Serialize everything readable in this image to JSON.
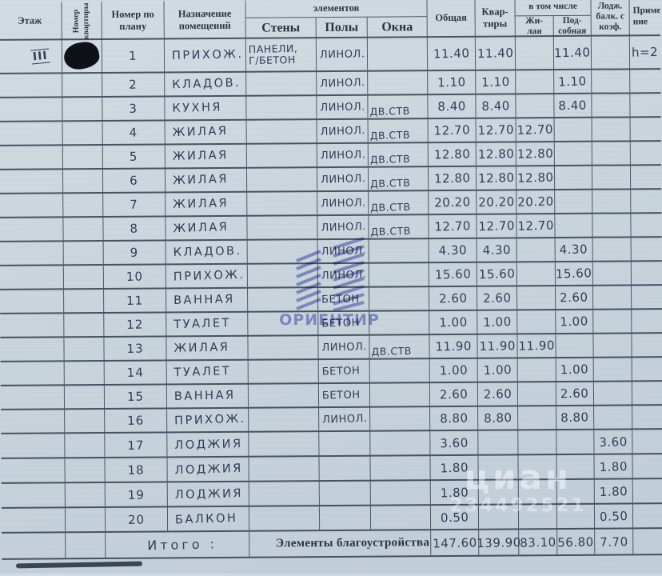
{
  "header": {
    "floor": "Этаж",
    "apartment_number": "Номер\nквартиры",
    "plan_number": "Номер по\nплану",
    "purpose": "Назначение\nпомещений",
    "materials_group": "элементов",
    "walls": "Стены",
    "floors": "Полы",
    "windows": "Окна",
    "area_total": "Общая",
    "area_apartment": "Квар-\nтиры",
    "including": "в том числе",
    "living": "Жи-\nлая",
    "auxiliary": "Под-\nсобная",
    "loggia": "Лодж.\nбалк. с\nкоэф.",
    "note": "Приме-\nние"
  },
  "floor_mark": "III",
  "rows": [
    {
      "n": "1",
      "name": "ПРИХОЖ.",
      "walls": "ПАНЕЛИ,\nГ/БЕТОН",
      "floor": "ЛИНОЛ.",
      "window": "",
      "total": "11.40",
      "apt": "11.40",
      "living": "",
      "aux": "11.40",
      "loggia": "",
      "note": "h=2"
    },
    {
      "n": "2",
      "name": "КЛАДОВ.",
      "floor": "ЛИНОЛ.",
      "total": "1.10",
      "apt": "1.10",
      "aux": "1.10"
    },
    {
      "n": "3",
      "name": "КУХНЯ",
      "floor": "ЛИНОЛ.",
      "window": "ДВ.СТВ",
      "total": "8.40",
      "apt": "8.40",
      "aux": "8.40"
    },
    {
      "n": "4",
      "name": "ЖИЛАЯ",
      "floor": "ЛИНОЛ.",
      "window": "ДВ.СТВ",
      "total": "12.70",
      "apt": "12.70",
      "living": "12.70"
    },
    {
      "n": "5",
      "name": "ЖИЛАЯ",
      "floor": "ЛИНОЛ.",
      "window": "ДВ.СТВ",
      "total": "12.80",
      "apt": "12.80",
      "living": "12.80"
    },
    {
      "n": "6",
      "name": "ЖИЛАЯ",
      "floor": "ЛИНОЛ.",
      "window": "ДВ.СТВ",
      "total": "12.80",
      "apt": "12.80",
      "living": "12.80"
    },
    {
      "n": "7",
      "name": "ЖИЛАЯ",
      "floor": "ЛИНОЛ.",
      "window": "ДВ.СТВ",
      "total": "20.20",
      "apt": "20.20",
      "living": "20.20"
    },
    {
      "n": "8",
      "name": "ЖИЛАЯ",
      "floor": "ЛИНОЛ.",
      "window": "ДВ.СТВ",
      "total": "12.70",
      "apt": "12.70",
      "living": "12.70"
    },
    {
      "n": "9",
      "name": "КЛАДОВ.",
      "floor": "ЛИНОЛ.",
      "total": "4.30",
      "apt": "4.30",
      "aux": "4.30"
    },
    {
      "n": "10",
      "name": "ПРИХОЖ.",
      "floor": "ЛИНОЛ.",
      "total": "15.60",
      "apt": "15.60",
      "aux": "15.60"
    },
    {
      "n": "11",
      "name": "ВАННАЯ",
      "floor": "БЕТОН",
      "total": "2.60",
      "apt": "2.60",
      "aux": "2.60"
    },
    {
      "n": "12",
      "name": "ТУАЛЕТ",
      "floor": "БЕТОН",
      "total": "1.00",
      "apt": "1.00",
      "aux": "1.00"
    },
    {
      "n": "13",
      "name": "ЖИЛАЯ",
      "floor": "ЛИНОЛ.",
      "window": "ДВ.СТВ",
      "total": "11.90",
      "apt": "11.90",
      "living": "11.90"
    },
    {
      "n": "14",
      "name": "ТУАЛЕТ",
      "floor": "БЕТОН",
      "total": "1.00",
      "apt": "1.00",
      "aux": "1.00"
    },
    {
      "n": "15",
      "name": "ВАННАЯ",
      "floor": "БЕТОН",
      "total": "2.60",
      "apt": "2.60",
      "aux": "2.60"
    },
    {
      "n": "16",
      "name": "ПРИХОЖ.",
      "floor": "ЛИНОЛ.",
      "total": "8.80",
      "apt": "8.80",
      "aux": "8.80"
    },
    {
      "n": "17",
      "name": "ЛОДЖИЯ",
      "total": "3.60",
      "loggia": "3.60"
    },
    {
      "n": "18",
      "name": "ЛОДЖИЯ",
      "total": "1.80",
      "loggia": "1.80"
    },
    {
      "n": "19",
      "name": "ЛОДЖИЯ",
      "total": "1.80",
      "loggia": "1.80"
    },
    {
      "n": "20",
      "name": "БАЛКОН",
      "total": "0.50",
      "loggia": "0.50"
    }
  ],
  "totals": {
    "label": "Итого :",
    "printed_label": "Элементы благоустройства",
    "total": "147.60",
    "apartment": "139.90",
    "living": "83.10",
    "auxiliary": "56.80",
    "loggia": "7.70"
  },
  "watermarks": {
    "center_text": "ОРИЕНТИР",
    "corner_text": "циан",
    "corner_digits": "234492521"
  },
  "colors": {
    "paper": "#cad5dd",
    "ink": "#333b58",
    "line": "#2c3448",
    "printed": "#2d3542",
    "watermark_blue": "#3648b8"
  }
}
